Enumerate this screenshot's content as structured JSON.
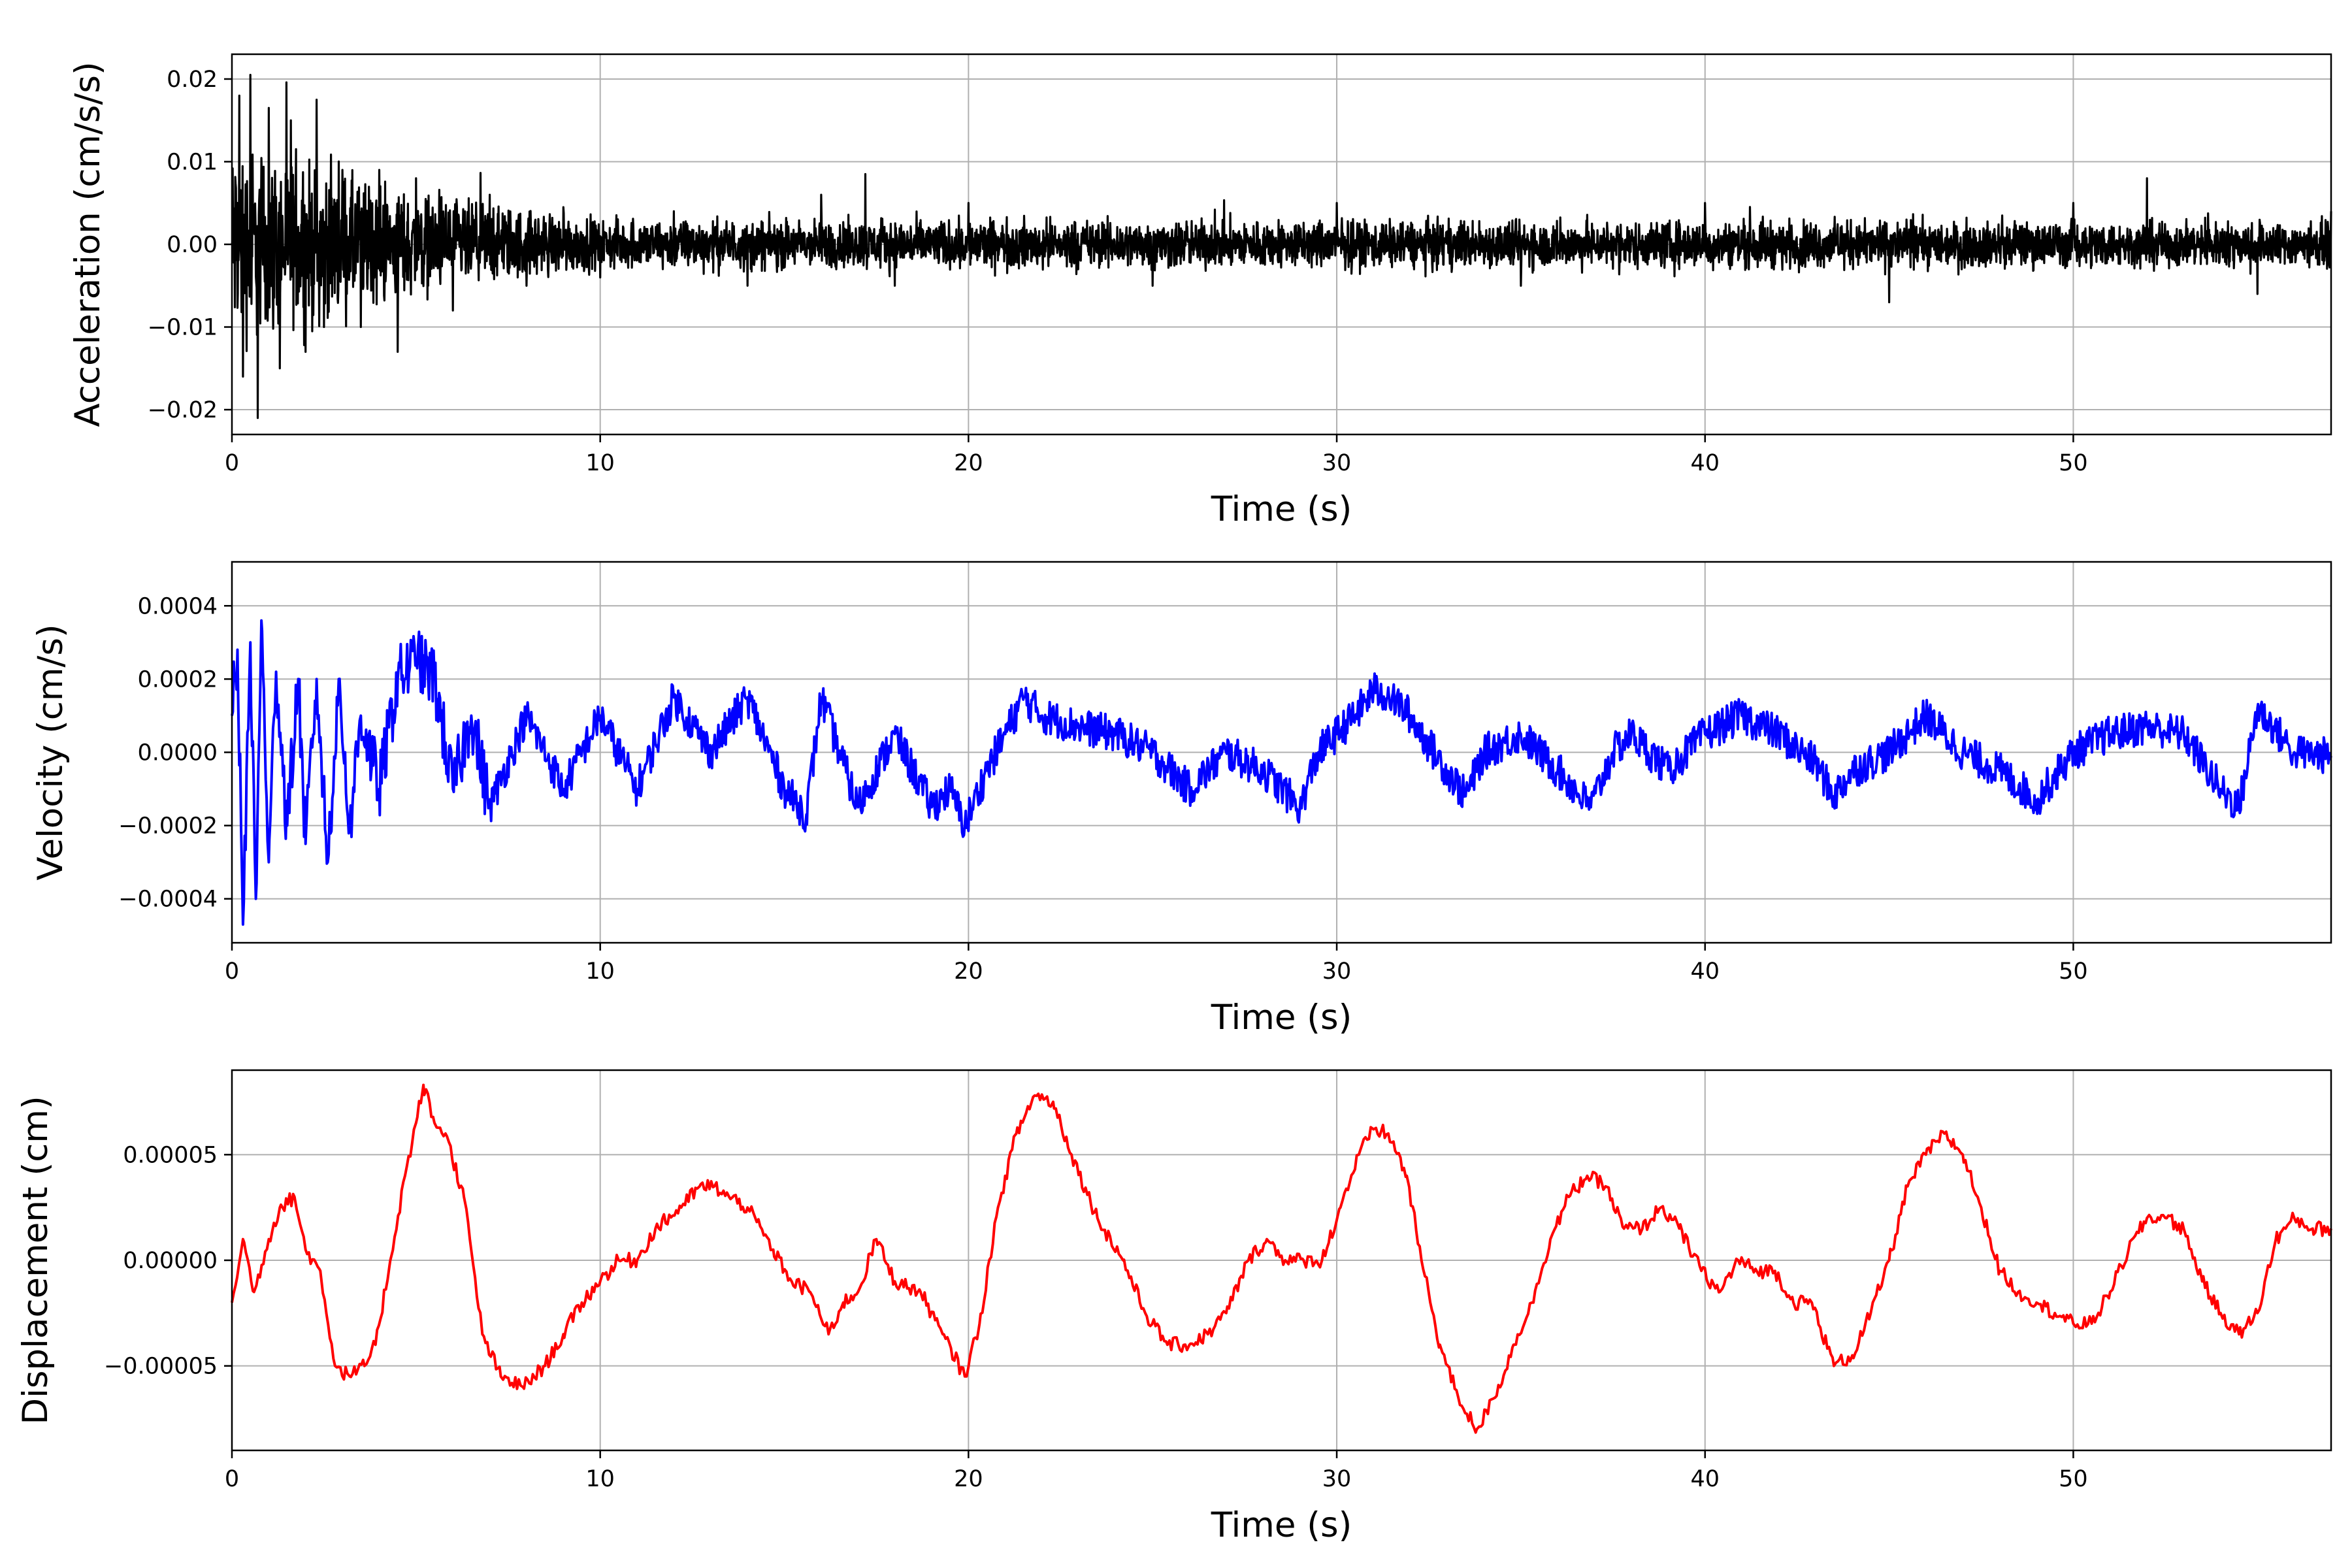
{
  "chart_data": [
    {
      "type": "line",
      "title": "",
      "xlabel": "Time (s)",
      "ylabel": "Acceleration (cm/s/s)",
      "xlim": [
        0,
        57
      ],
      "ylim": [
        -0.023,
        0.023
      ],
      "xticks": [
        0,
        10,
        20,
        30,
        40,
        50
      ],
      "xtick_labels": [
        "0",
        "10",
        "20",
        "30",
        "40",
        "50"
      ],
      "yticks": [
        -0.02,
        -0.01,
        0.0,
        0.01,
        0.02
      ],
      "ytick_labels": [
        "−0.02",
        "−0.01",
        "0.00",
        "0.01",
        "0.02"
      ],
      "grid": true,
      "color": "#000000",
      "x": [
        0,
        0.2,
        0.3,
        0.5,
        0.7,
        1.0,
        1.3,
        1.6,
        2.0,
        2.3,
        2.5,
        3.0,
        3.5,
        4.0,
        4.5,
        5.0,
        6.0,
        7.0,
        8.0,
        9.0,
        10.0,
        12.0,
        14.0,
        16.0,
        17.2,
        18.0,
        20.0,
        25.0,
        30.0,
        35.0,
        40.0,
        45.0,
        50.0,
        52.0,
        55.0,
        57.0
      ],
      "y": [
        0.0,
        0.018,
        -0.016,
        0.0205,
        -0.021,
        0.0165,
        -0.015,
        0.015,
        -0.013,
        0.0175,
        -0.01,
        0.009,
        -0.01,
        0.009,
        -0.013,
        0.008,
        -0.008,
        0.006,
        -0.005,
        0.0045,
        -0.004,
        0.004,
        -0.005,
        0.006,
        0.0085,
        -0.005,
        0.005,
        -0.005,
        0.005,
        -0.005,
        0.005,
        -0.007,
        0.005,
        0.008,
        -0.006,
        0.004
      ],
      "envelope": [
        [
          0,
          0.021
        ],
        [
          1,
          0.018
        ],
        [
          2.5,
          0.015
        ],
        [
          5,
          0.01
        ],
        [
          8,
          0.007
        ],
        [
          10,
          0.005
        ],
        [
          15,
          0.005
        ],
        [
          57,
          0.0045
        ]
      ]
    },
    {
      "type": "line",
      "title": "",
      "xlabel": "Time (s)",
      "ylabel": "Velocity (cm/s)",
      "xlim": [
        0,
        57
      ],
      "ylim": [
        -0.00052,
        0.00052
      ],
      "xticks": [
        0,
        10,
        20,
        30,
        40,
        50
      ],
      "xtick_labels": [
        "0",
        "10",
        "20",
        "30",
        "40",
        "50"
      ],
      "yticks": [
        -0.0004,
        -0.0002,
        0.0,
        0.0002,
        0.0004
      ],
      "ytick_labels": [
        "−0.0004",
        "−0.0002",
        "0.0000",
        "0.0002",
        "0.0004"
      ],
      "grid": true,
      "color": "#0000ff",
      "x": [
        0,
        0.15,
        0.3,
        0.5,
        0.65,
        0.8,
        1.0,
        1.2,
        1.5,
        1.8,
        2.0,
        2.3,
        2.6,
        2.9,
        3.2,
        3.5,
        4.0,
        4.5,
        5.0,
        5.5,
        6.0,
        6.5,
        7.0,
        8.0,
        9.0,
        10.0,
        11.0,
        12.0,
        13.0,
        14.0,
        15.0,
        15.6,
        16.0,
        17.0,
        18.0,
        19.0,
        19.5,
        19.9,
        20.5,
        21.0,
        21.5,
        22.0,
        23.0,
        24.0,
        25.0,
        26.0,
        27.0,
        28.0,
        29.0,
        29.5,
        30.0,
        30.5,
        31.0,
        31.5,
        32.0,
        32.5,
        33.0,
        33.5,
        34.0,
        35.0,
        36.0,
        36.9,
        37.5,
        38.0,
        39.0,
        40.0,
        41.0,
        42.0,
        43.0,
        43.5,
        44.0,
        45.0,
        46.0,
        47.0,
        48.0,
        49.0,
        50.0,
        51.0,
        52.0,
        53.0,
        54.0,
        54.5,
        55.0,
        56.0,
        57.0
      ],
      "y": [
        0.0001,
        0.00028,
        -0.00047,
        0.0003,
        -0.0004,
        0.00036,
        -0.0003,
        0.00022,
        -0.0002,
        0.0002,
        -0.00025,
        0.0002,
        -0.0003,
        0.0002,
        -0.0002,
        0.0001,
        -0.0001,
        0.0002,
        0.00025,
        0.0002,
        -0.0001,
        0.0001,
        -0.00015,
        0.0001,
        -0.0001,
        0.0001,
        -0.0001,
        0.00015,
        0.0,
        0.00015,
        -0.0001,
        -0.00017,
        0.00015,
        -0.00015,
        5e-05,
        -0.00015,
        -0.0001,
        -0.0002,
        -5e-05,
        5e-05,
        0.00015,
        0.0001,
        7e-05,
        5e-05,
        0.0,
        -0.0001,
        0.0,
        -5e-05,
        -0.00015,
        0.0,
        5e-05,
        0.0001,
        0.00017,
        0.00015,
        0.0001,
        2e-05,
        -5e-05,
        -0.00012,
        0.0,
        5e-05,
        -5e-05,
        -0.00015,
        0.0,
        5e-05,
        -5e-05,
        5e-05,
        0.0001,
        5e-05,
        -3e-05,
        -0.00012,
        -5e-05,
        0.0,
        0.0001,
        0.0,
        -5e-05,
        -0.00013,
        0.0,
        5e-05,
        7e-05,
        5e-05,
        -0.0001,
        -0.00015,
        0.00012,
        0.0,
        -1e-05
      ]
    },
    {
      "type": "line",
      "title": "",
      "xlabel": "Time (s)",
      "ylabel": "Displacement (cm)",
      "xlim": [
        0,
        57
      ],
      "ylim": [
        -9e-05,
        9e-05
      ],
      "xticks": [
        0,
        10,
        20,
        30,
        40,
        50
      ],
      "xtick_labels": [
        "0",
        "10",
        "20",
        "30",
        "40",
        "50"
      ],
      "yticks": [
        -5e-05,
        0.0,
        5e-05
      ],
      "ytick_labels": [
        "−0.00005",
        "0.00000",
        "0.00005"
      ],
      "grid": true,
      "color": "#ff0000",
      "x": [
        0,
        0.3,
        0.6,
        1.0,
        1.3,
        1.7,
        2.0,
        2.4,
        2.8,
        3.2,
        3.6,
        3.9,
        4.3,
        4.7,
        5.0,
        5.2,
        5.5,
        5.8,
        6.3,
        6.8,
        7.3,
        7.9,
        8.5,
        9.0,
        9.5,
        10.0,
        10.5,
        11.0,
        11.5,
        12.2,
        12.7,
        13.1,
        13.5,
        14.0,
        14.7,
        15.2,
        15.7,
        16.2,
        16.6,
        17.0,
        17.5,
        18.0,
        18.7,
        19.3,
        19.9,
        20.3,
        20.8,
        21.3,
        21.8,
        22.3,
        22.8,
        23.5,
        24.2,
        24.8,
        25.4,
        26.0,
        26.5,
        27.0,
        27.6,
        28.1,
        28.6,
        29.1,
        29.6,
        30.1,
        30.6,
        31.0,
        31.4,
        31.9,
        32.3,
        32.8,
        33.3,
        33.8,
        34.3,
        34.8,
        35.3,
        35.8,
        36.3,
        36.8,
        37.3,
        37.8,
        38.3,
        38.8,
        39.3,
        39.9,
        40.4,
        40.9,
        41.4,
        41.9,
        42.4,
        42.9,
        43.5,
        44.0,
        44.5,
        45.0,
        45.5,
        46.0,
        46.5,
        47.0,
        47.5,
        48.0,
        48.5,
        49.0,
        49.5,
        50.0,
        50.5,
        51.0,
        51.5,
        52.0,
        52.5,
        53.0,
        53.5,
        54.0,
        54.5,
        55.0,
        55.5,
        56.0,
        56.5,
        57.0
      ],
      "y": [
        -2e-05,
        1e-05,
        -1.5e-05,
        1e-05,
        2.5e-05,
        3e-05,
        5e-06,
        -5e-06,
        -5e-05,
        -5.5e-05,
        -5e-05,
        -4e-05,
        0.0,
        4e-05,
        6.5e-05,
        8.3e-05,
        6.5e-05,
        6e-05,
        3e-05,
        -3.5e-05,
        -5.5e-05,
        -6e-05,
        -5e-05,
        -3.5e-05,
        -2e-05,
        -1e-05,
        0.0,
        0.0,
        1.5e-05,
        2.5e-05,
        3.5e-05,
        3.5e-05,
        3e-05,
        2.5e-05,
        5e-06,
        -1e-05,
        -1.5e-05,
        -3.5e-05,
        -2e-05,
        -1.5e-05,
        1e-05,
        -1e-05,
        -1.5e-05,
        -3.5e-05,
        -5.5e-05,
        -3e-05,
        2.5e-05,
        6e-05,
        7.8e-05,
        7.5e-05,
        5e-05,
        2e-05,
        0.0,
        -2.5e-05,
        -4e-05,
        -4e-05,
        -3.5e-05,
        -2.5e-05,
        0.0,
        1e-05,
        0.0,
        0.0,
        0.0,
        2.5e-05,
        5e-05,
        6.2e-05,
        6e-05,
        4e-05,
        0.0,
        -4e-05,
        -6.5e-05,
        -8e-05,
        -6.5e-05,
        -4e-05,
        -2e-05,
        1e-05,
        3e-05,
        4e-05,
        3.5e-05,
        1.5e-05,
        1.5e-05,
        2.5e-05,
        1.5e-05,
        -5e-06,
        -1.5e-05,
        0.0,
        -5e-06,
        -5e-06,
        -2e-05,
        -2e-05,
        -5e-05,
        -4.5e-05,
        -2.5e-05,
        0.0,
        3.5e-05,
        5e-05,
        6e-05,
        5e-05,
        2.5e-05,
        -5e-06,
        -1.5e-05,
        -2e-05,
        -2.5e-05,
        -3e-05,
        -3e-05,
        -1.5e-05,
        5e-06,
        2e-05,
        2e-05,
        1.5e-05,
        -1e-05,
        -2.5e-05,
        -3.5e-05,
        -2.5e-05,
        1e-05,
        2e-05,
        1.5e-05,
        1.5e-05
      ]
    }
  ]
}
